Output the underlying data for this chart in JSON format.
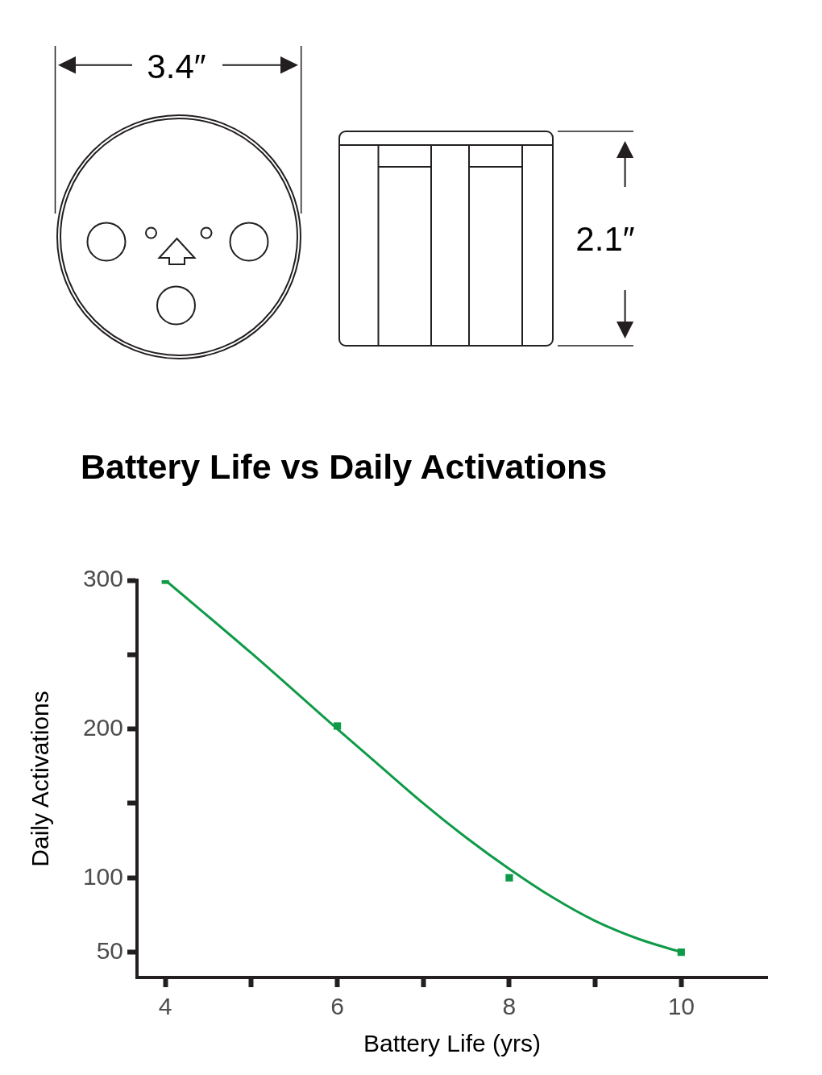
{
  "chart_data": {
    "type": "scatter",
    "title": "Battery Life vs Daily Activations",
    "xlabel": "Battery Life (yrs)",
    "ylabel": "Daily Activations",
    "x": [
      4,
      6,
      8,
      10
    ],
    "series": [
      {
        "color": "#0f9a48",
        "marker": "square",
        "values": [
          300,
          202,
          100,
          50
        ]
      },
      {
        "type": "line",
        "color": "#0f9a48",
        "x": [
          4,
          5,
          6,
          6.5,
          7,
          7.5,
          8,
          8.5,
          9,
          9.5,
          10
        ],
        "values": [
          300,
          251,
          200,
          175,
          150,
          127,
          106,
          87,
          71,
          59,
          50
        ]
      }
    ],
    "xlim": [
      3.67,
      11
    ],
    "xticks": [
      4,
      {
        "value": 5,
        "label": null
      },
      6,
      {
        "value": 7,
        "label": null
      },
      8,
      {
        "value": 9,
        "label": null
      },
      10
    ],
    "ylim": [
      33,
      300
    ],
    "yticks": [
      50,
      100,
      {
        "value": 150,
        "label": null
      },
      200,
      {
        "value": 250,
        "label": null
      },
      300
    ],
    "annotations": [
      "3.4″",
      "2.1″"
    ]
  }
}
